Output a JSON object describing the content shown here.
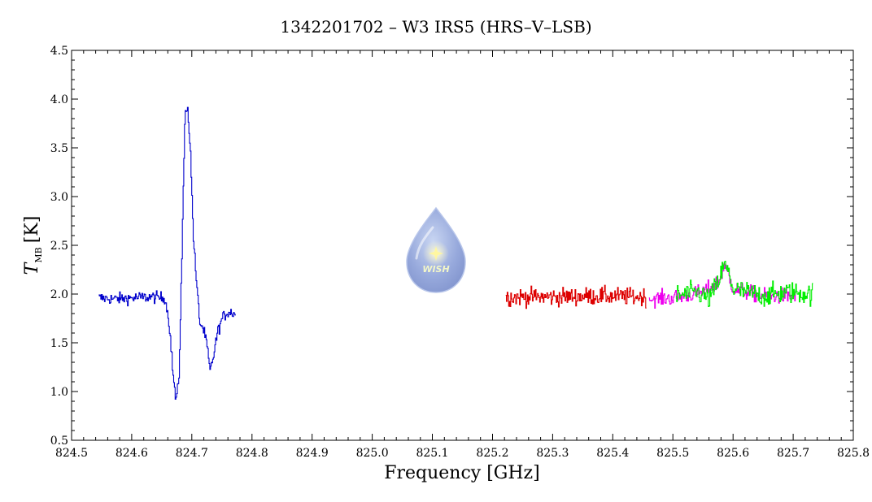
{
  "chart_data": {
    "type": "line",
    "title": "1342201702 – W3 IRS5 (HRS–V–LSB)",
    "xlabel": "Frequency [GHz]",
    "ylabel_main": "T",
    "ylabel_sub": "MB",
    "ylabel_unit": "[K]",
    "xlim": [
      824.5,
      825.8
    ],
    "ylim": [
      0.5,
      4.5
    ],
    "x_ticks": [
      "824.5",
      "824.6",
      "824.7",
      "824.8",
      "824.9",
      "825.0",
      "825.1",
      "825.2",
      "825.3",
      "825.4",
      "825.5",
      "825.6",
      "825.7",
      "825.8"
    ],
    "y_ticks": [
      "0.5",
      "1.0",
      "1.5",
      "2.0",
      "2.5",
      "3.0",
      "3.5",
      "4.0",
      "4.5"
    ],
    "logo_text": "WISH",
    "series": [
      {
        "color": "#0000cc",
        "x_range": [
          824.545,
          824.773
        ],
        "anchors": [
          [
            824.545,
            1.96
          ],
          [
            824.57,
            1.95
          ],
          [
            824.6,
            1.96
          ],
          [
            824.63,
            1.97
          ],
          [
            824.655,
            1.96
          ],
          [
            824.662,
            1.7
          ],
          [
            824.668,
            1.2
          ],
          [
            824.673,
            0.9
          ],
          [
            824.678,
            1.1
          ],
          [
            824.683,
            2.4
          ],
          [
            824.688,
            3.8
          ],
          [
            824.692,
            3.96
          ],
          [
            824.697,
            3.5
          ],
          [
            824.702,
            2.6
          ],
          [
            824.708,
            2.05
          ],
          [
            824.713,
            1.7
          ],
          [
            824.718,
            1.65
          ],
          [
            824.724,
            1.5
          ],
          [
            824.73,
            1.2
          ],
          [
            824.735,
            1.35
          ],
          [
            824.742,
            1.6
          ],
          [
            824.75,
            1.75
          ],
          [
            824.76,
            1.82
          ],
          [
            824.773,
            1.8
          ]
        ],
        "noise": 0.03
      },
      {
        "color": "#dd0000",
        "x_range": [
          825.222,
          825.455
        ],
        "anchors": [
          [
            825.222,
            1.97
          ],
          [
            825.3,
            1.97
          ],
          [
            825.38,
            1.98
          ],
          [
            825.455,
            1.97
          ]
        ],
        "noise": 0.045
      },
      {
        "color": "#ee00ee",
        "x_range": [
          825.46,
          825.705
        ],
        "anchors": [
          [
            825.46,
            1.95
          ],
          [
            825.5,
            1.96
          ],
          [
            825.55,
            2.02
          ],
          [
            825.575,
            2.12
          ],
          [
            825.585,
            2.28
          ],
          [
            825.592,
            2.2
          ],
          [
            825.6,
            2.05
          ],
          [
            825.65,
            1.98
          ],
          [
            825.705,
            1.98
          ]
        ],
        "noise": 0.04
      },
      {
        "color": "#00ee00",
        "x_range": [
          825.505,
          825.732
        ],
        "anchors": [
          [
            825.505,
            1.98
          ],
          [
            825.54,
            2.02
          ],
          [
            825.56,
            1.95
          ],
          [
            825.575,
            2.12
          ],
          [
            825.585,
            2.3
          ],
          [
            825.592,
            2.22
          ],
          [
            825.6,
            2.05
          ],
          [
            825.65,
            1.98
          ],
          [
            825.69,
            2.02
          ],
          [
            825.732,
            2.0
          ]
        ],
        "noise": 0.055
      }
    ]
  }
}
